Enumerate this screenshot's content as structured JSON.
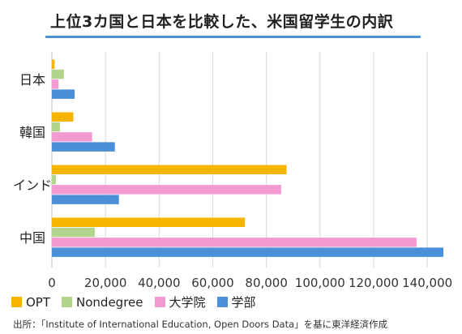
{
  "title": "上位3カ国と日本を比較した、米国留学生の内訳",
  "source": "出所：「Institute of International Education, Open Doors Data」を基に東洋経済作成",
  "colors": {
    "accent": "#4a90d9"
  },
  "chart_data": {
    "type": "bar",
    "orientation": "horizontal",
    "title": "上位3カ国と日本を比較した、米国留学生の内訳",
    "categories": [
      "日本",
      "韓国",
      "インド",
      "中国"
    ],
    "series": [
      {
        "name": "OPT",
        "color": "#f5b400",
        "values": [
          1000,
          8000,
          87500,
          72000
        ]
      },
      {
        "name": "Nondegree",
        "color": "#b3d48c",
        "values": [
          4500,
          3000,
          1500,
          16000
        ]
      },
      {
        "name": "大学院",
        "color": "#f49ad3",
        "values": [
          2500,
          15000,
          85500,
          136000
        ]
      },
      {
        "name": "学部",
        "color": "#4a90d9",
        "values": [
          8500,
          23500,
          25000,
          146000
        ]
      }
    ],
    "xlim": [
      0,
      146000
    ],
    "xticks": [
      0,
      20000,
      40000,
      60000,
      80000,
      100000,
      120000,
      140000
    ],
    "xtick_labels": [
      "0",
      "20,000",
      "40,000",
      "60,000",
      "80,000",
      "100,000",
      "120,000",
      "140,000"
    ],
    "xgrid": true,
    "legend_position": "bottom"
  }
}
